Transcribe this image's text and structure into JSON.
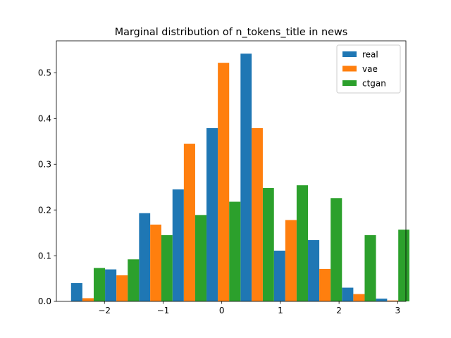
{
  "chart_data": {
    "type": "bar",
    "title": "Marginal distribution of n_tokens_title in news",
    "xlabel": "",
    "ylabel": "",
    "xlim": [
      -2.82,
      3.14
    ],
    "ylim": [
      0,
      0.57
    ],
    "x_ticks": [
      -2,
      -1,
      0,
      1,
      2,
      3
    ],
    "x_tick_labels": [
      "−2",
      "−1",
      "0",
      "1",
      "2",
      "3"
    ],
    "y_ticks": [
      0,
      0.1,
      0.2,
      0.3,
      0.4,
      0.5
    ],
    "y_tick_labels": [
      "0.0",
      "0.1",
      "0.2",
      "0.3",
      "0.4",
      "0.5"
    ],
    "bin_edges": [
      -2.57,
      -1.99,
      -1.41,
      -0.84,
      -0.26,
      0.32,
      0.89,
      1.47,
      2.05,
      2.63,
      3.2
    ],
    "grid": false,
    "legend_position": "top-right",
    "series": [
      {
        "name": "real",
        "color": "#1f77b4",
        "values": [
          0.04,
          0.07,
          0.193,
          0.245,
          0.379,
          0.542,
          0.111,
          0.134,
          0.03,
          0.006
        ]
      },
      {
        "name": "vae",
        "color": "#ff7f0e",
        "values": [
          0.007,
          0.057,
          0.168,
          0.345,
          0.522,
          0.379,
          0.178,
          0.071,
          0.016,
          0.002
        ]
      },
      {
        "name": "ctgan",
        "color": "#2ca02c",
        "values": [
          0.073,
          0.092,
          0.145,
          0.189,
          0.218,
          0.248,
          0.254,
          0.226,
          0.145,
          0.157
        ]
      }
    ]
  }
}
